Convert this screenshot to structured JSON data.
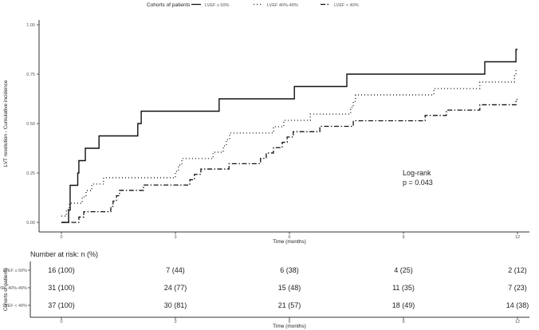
{
  "chart_data": {
    "type": "line",
    "subtype": "step cumulative incidence",
    "xlabel": "Time (months)",
    "ylabel": "LVT resolution - Cumulative incidence",
    "xlim": [
      0,
      12
    ],
    "ylim": [
      0,
      1
    ],
    "xticks": [
      0,
      3,
      6,
      9,
      12
    ],
    "yticks": [
      "0.00",
      "0.25",
      "0.50",
      "0.75",
      "1.00"
    ],
    "grid": false,
    "legend": {
      "title": "Cohorts of patients",
      "placement": "top",
      "entries": [
        "LVEF ≥ 50%",
        "LVEF 40%-49%",
        "LVEF < 40%"
      ]
    },
    "annotation": [
      "Log-rank",
      "p = 0.043"
    ],
    "series": [
      {
        "name": "LVEF ≥ 50%",
        "linestyle": "solid",
        "color": "#111111",
        "points": [
          [
            0,
            0
          ],
          [
            0.19,
            0.0625
          ],
          [
            0.23,
            0.1875
          ],
          [
            0.43,
            0.25
          ],
          [
            0.46,
            0.3125
          ],
          [
            0.63,
            0.375
          ],
          [
            0.99,
            0.4375
          ],
          [
            2.01,
            0.5
          ],
          [
            2.1,
            0.5625
          ],
          [
            4.15,
            0.625
          ],
          [
            6.13,
            0.6875
          ],
          [
            7.51,
            0.75
          ],
          [
            11.14,
            0.8125
          ],
          [
            11.96,
            0.875
          ]
        ]
      },
      {
        "name": "LVEF 40%-49%",
        "linestyle": "dotted",
        "color": "#111111",
        "points": [
          [
            0,
            0.032
          ],
          [
            0.13,
            0.065
          ],
          [
            0.21,
            0.097
          ],
          [
            0.55,
            0.129
          ],
          [
            0.65,
            0.161
          ],
          [
            0.8,
            0.194
          ],
          [
            1.11,
            0.226
          ],
          [
            3.0,
            0.258
          ],
          [
            3.08,
            0.29
          ],
          [
            3.17,
            0.323
          ],
          [
            3.99,
            0.355
          ],
          [
            4.26,
            0.387
          ],
          [
            4.34,
            0.419
          ],
          [
            4.43,
            0.452
          ],
          [
            5.58,
            0.484
          ],
          [
            5.85,
            0.516
          ],
          [
            6.55,
            0.548
          ],
          [
            7.61,
            0.581
          ],
          [
            7.68,
            0.613
          ],
          [
            7.74,
            0.645
          ],
          [
            9.8,
            0.677
          ],
          [
            11.01,
            0.71
          ],
          [
            11.92,
            0.742
          ],
          [
            11.96,
            0.774
          ]
        ]
      },
      {
        "name": "LVEF < 40%",
        "linestyle": "dashdot",
        "color": "#111111",
        "points": [
          [
            0,
            0
          ],
          [
            0.46,
            0.027
          ],
          [
            0.59,
            0.054
          ],
          [
            1.3,
            0.081
          ],
          [
            1.36,
            0.108
          ],
          [
            1.45,
            0.135
          ],
          [
            1.53,
            0.162
          ],
          [
            2.16,
            0.189
          ],
          [
            3.38,
            0.216
          ],
          [
            3.5,
            0.243
          ],
          [
            3.67,
            0.27
          ],
          [
            4.41,
            0.297
          ],
          [
            5.24,
            0.324
          ],
          [
            5.39,
            0.351
          ],
          [
            5.58,
            0.378
          ],
          [
            5.81,
            0.405
          ],
          [
            5.94,
            0.432
          ],
          [
            6.1,
            0.459
          ],
          [
            6.8,
            0.486
          ],
          [
            7.68,
            0.514
          ],
          [
            9.57,
            0.541
          ],
          [
            10.13,
            0.568
          ],
          [
            11.01,
            0.595
          ],
          [
            11.96,
            0.622
          ]
        ]
      }
    ],
    "risk_table": {
      "title": "Number at risk: n (%)",
      "ylabel": "Cohorts of patients",
      "xlabel": "Time (months)",
      "rows": [
        {
          "label": "LVEF ≥ 50%",
          "values": [
            "16 (100)",
            "7 (44)",
            "6 (38)",
            "4 (25)",
            "2 (12)"
          ]
        },
        {
          "label": "LVEF 40%-49%",
          "values": [
            "31 (100)",
            "24 (77)",
            "15 (48)",
            "11 (35)",
            "7 (23)"
          ]
        },
        {
          "label": "LVEF < 40%",
          "values": [
            "37 (100)",
            "30 (81)",
            "21 (57)",
            "18 (49)",
            "14 (38)"
          ]
        }
      ]
    }
  }
}
